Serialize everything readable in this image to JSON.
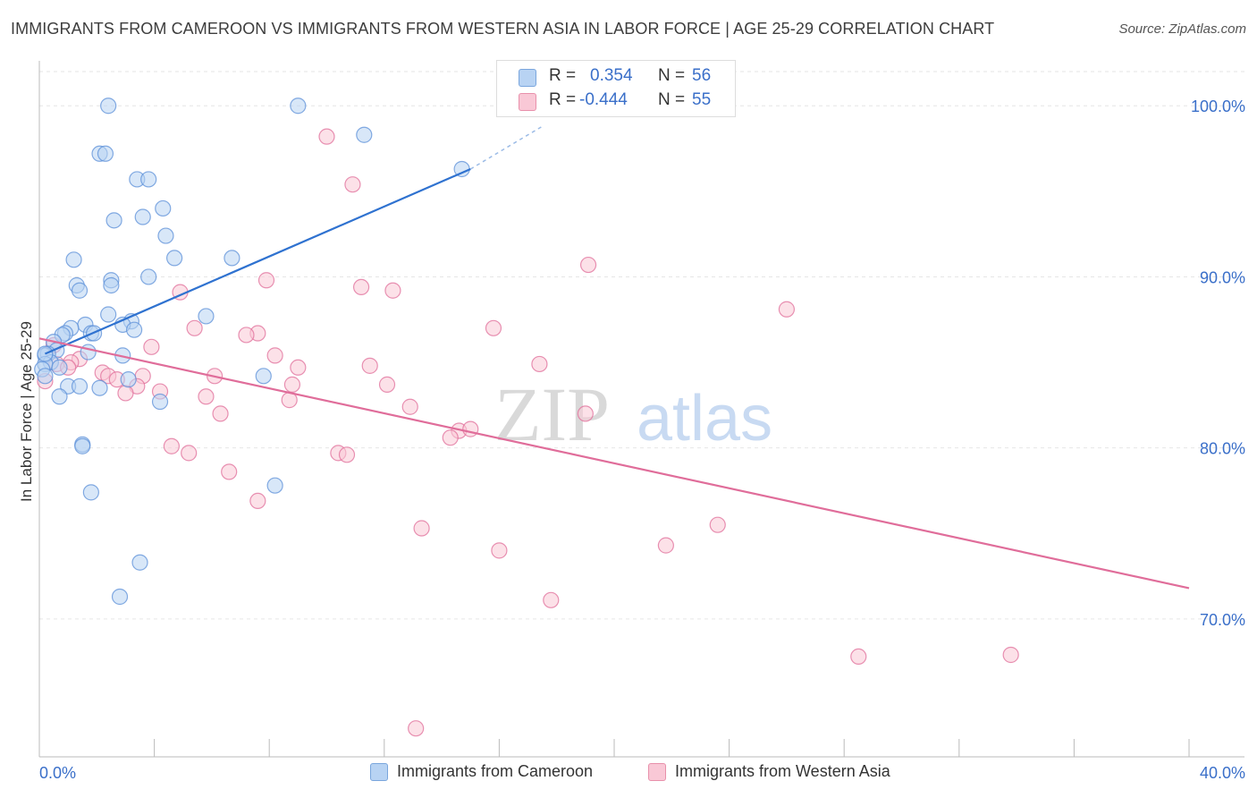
{
  "title": "IMMIGRANTS FROM CAMEROON VS IMMIGRANTS FROM WESTERN ASIA IN LABOR FORCE | AGE 25-29 CORRELATION CHART",
  "source": "Source: ZipAtlas.com",
  "watermark": {
    "zip": "ZIP",
    "atlas": "atlas"
  },
  "stats": {
    "r_label": "R =",
    "n_label": "N =",
    "rows": [
      {
        "r": "0.354",
        "n": "56",
        "color": "#5b8fd8"
      },
      {
        "r": "-0.444",
        "n": "55",
        "color": "#e06d9a"
      }
    ]
  },
  "legend": {
    "items": [
      {
        "label": "Immigrants from Cameroon",
        "color": "#b8d3f3"
      },
      {
        "label": "Immigrants from Western Asia",
        "color": "#f9c8d6"
      }
    ]
  },
  "chart_data": {
    "type": "scatter",
    "title": "IMMIGRANTS FROM CAMEROON VS IMMIGRANTS FROM WESTERN ASIA IN LABOR FORCE | AGE 25-29 CORRELATION CHART",
    "xlabel": "",
    "ylabel": "In Labor Force | Age 25-29",
    "xlim": [
      0,
      40
    ],
    "ylim": [
      60,
      102
    ],
    "x_tick_labels": [
      "0.0%",
      "40.0%"
    ],
    "y_ticks": [
      70,
      80,
      90,
      100
    ],
    "y_tick_labels": [
      "70.0%",
      "80.0%",
      "90.0%",
      "100.0%"
    ],
    "grid": true,
    "legend_position": "bottom",
    "series": [
      {
        "name": "Immigrants from Cameroon",
        "color": "#5b8fd8",
        "fill": "#b8d3f3",
        "trend": {
          "x": [
            0.2,
            15.0
          ],
          "y": [
            85.5,
            96.3
          ],
          "dashed_to": [
            17.5,
            98.8
          ]
        },
        "points": [
          [
            2.4,
            100.0
          ],
          [
            9.0,
            100.0
          ],
          [
            2.1,
            97.2
          ],
          [
            2.3,
            97.2
          ],
          [
            11.3,
            98.3
          ],
          [
            14.7,
            96.3
          ],
          [
            3.4,
            95.7
          ],
          [
            3.8,
            95.7
          ],
          [
            4.3,
            94.0
          ],
          [
            2.6,
            93.3
          ],
          [
            3.6,
            93.5
          ],
          [
            4.4,
            92.4
          ],
          [
            1.2,
            91.0
          ],
          [
            4.7,
            91.1
          ],
          [
            6.7,
            91.1
          ],
          [
            1.3,
            89.5
          ],
          [
            1.4,
            89.2
          ],
          [
            2.5,
            89.8
          ],
          [
            2.5,
            89.5
          ],
          [
            3.8,
            90.0
          ],
          [
            2.4,
            87.8
          ],
          [
            5.8,
            87.7
          ],
          [
            3.2,
            87.4
          ],
          [
            1.6,
            87.2
          ],
          [
            2.9,
            87.2
          ],
          [
            1.1,
            87.0
          ],
          [
            0.9,
            86.7
          ],
          [
            0.8,
            86.6
          ],
          [
            1.8,
            86.7
          ],
          [
            1.9,
            86.7
          ],
          [
            3.3,
            86.9
          ],
          [
            0.5,
            86.2
          ],
          [
            0.6,
            85.7
          ],
          [
            0.3,
            85.5
          ],
          [
            0.2,
            85.4
          ],
          [
            1.7,
            85.6
          ],
          [
            2.9,
            85.4
          ],
          [
            0.4,
            85.0
          ],
          [
            0.2,
            84.9
          ],
          [
            0.1,
            84.6
          ],
          [
            0.7,
            84.7
          ],
          [
            0.2,
            84.2
          ],
          [
            3.1,
            84.0
          ],
          [
            7.8,
            84.2
          ],
          [
            1.0,
            83.6
          ],
          [
            1.4,
            83.6
          ],
          [
            2.1,
            83.5
          ],
          [
            0.7,
            83.0
          ],
          [
            4.2,
            82.7
          ],
          [
            1.5,
            80.2
          ],
          [
            1.5,
            80.1
          ],
          [
            1.8,
            77.4
          ],
          [
            8.2,
            77.8
          ],
          [
            3.5,
            73.3
          ],
          [
            2.8,
            71.3
          ],
          [
            0.2,
            85.5
          ]
        ]
      },
      {
        "name": "Immigrants from Western Asia",
        "color": "#e06d9a",
        "fill": "#f9c8d6",
        "trend": {
          "x": [
            0.0,
            40.0
          ],
          "y": [
            86.4,
            71.8
          ]
        },
        "points": [
          [
            10.0,
            98.2
          ],
          [
            10.9,
            95.4
          ],
          [
            19.1,
            90.7
          ],
          [
            7.9,
            89.8
          ],
          [
            11.2,
            89.4
          ],
          [
            12.3,
            89.2
          ],
          [
            4.9,
            89.1
          ],
          [
            26.0,
            88.1
          ],
          [
            5.4,
            87.0
          ],
          [
            7.6,
            86.7
          ],
          [
            7.2,
            86.6
          ],
          [
            15.8,
            87.0
          ],
          [
            3.9,
            85.9
          ],
          [
            0.5,
            86.0
          ],
          [
            8.2,
            85.4
          ],
          [
            1.4,
            85.2
          ],
          [
            1.1,
            85.0
          ],
          [
            9.0,
            84.7
          ],
          [
            11.5,
            84.8
          ],
          [
            17.4,
            84.9
          ],
          [
            0.6,
            84.9
          ],
          [
            1.0,
            84.7
          ],
          [
            2.2,
            84.4
          ],
          [
            2.4,
            84.2
          ],
          [
            3.6,
            84.2
          ],
          [
            6.1,
            84.2
          ],
          [
            0.2,
            83.9
          ],
          [
            2.7,
            84.0
          ],
          [
            8.8,
            83.7
          ],
          [
            12.1,
            83.7
          ],
          [
            3.4,
            83.6
          ],
          [
            3.0,
            83.2
          ],
          [
            4.2,
            83.3
          ],
          [
            5.8,
            83.0
          ],
          [
            8.7,
            82.8
          ],
          [
            12.9,
            82.4
          ],
          [
            19.0,
            82.0
          ],
          [
            6.3,
            82.0
          ],
          [
            14.6,
            81.0
          ],
          [
            15.0,
            81.1
          ],
          [
            14.3,
            80.6
          ],
          [
            4.6,
            80.1
          ],
          [
            5.2,
            79.7
          ],
          [
            10.4,
            79.7
          ],
          [
            10.7,
            79.6
          ],
          [
            6.6,
            78.6
          ],
          [
            7.6,
            76.9
          ],
          [
            13.3,
            75.3
          ],
          [
            23.6,
            75.5
          ],
          [
            21.8,
            74.3
          ],
          [
            16.0,
            74.0
          ],
          [
            17.8,
            71.1
          ],
          [
            28.5,
            67.8
          ],
          [
            33.8,
            67.9
          ],
          [
            13.1,
            63.6
          ]
        ]
      }
    ]
  }
}
